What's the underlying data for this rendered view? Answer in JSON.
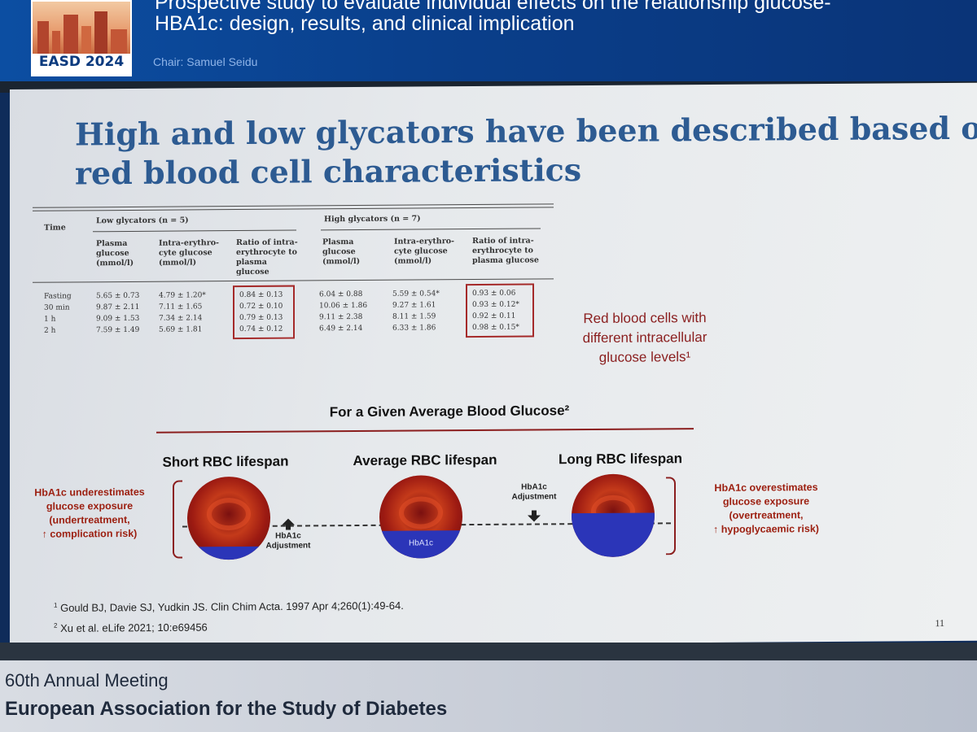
{
  "header": {
    "logo_text": "EASD 2024",
    "title_line1": "Prospective study to evaluate individual effects on the relationship glucose-",
    "title_line2": "HBA1c: design, results, and clinical implication",
    "chair": "Chair: Samuel Seidu"
  },
  "slide": {
    "title_line1": "High and low glycators have been described based on",
    "title_line2": "red blood cell characteristics",
    "table": {
      "time_header": "Time",
      "low_group": "Low glycators (n = 5)",
      "high_group": "High glycators (n = 7)",
      "col_plasma": [
        "Plasma",
        "glucose",
        "(mmol/l)"
      ],
      "col_intra": [
        "Intra-erythro-",
        "cyte glucose",
        "(mmol/l)"
      ],
      "col_ratio": [
        "Ratio of intra-",
        "erythrocyte to",
        "plasma",
        "glucose"
      ],
      "col_ratio_high": [
        "Ratio of intra-",
        "erythrocyte to",
        "plasma glucose"
      ],
      "rows": [
        {
          "time": "Fasting",
          "lp": "5.65 ± 0.73",
          "li": "4.79 ± 1.20*",
          "lr": "0.84 ± 0.13",
          "hp": "6.04 ± 0.88",
          "hi": "5.59 ± 0.54*",
          "hr": "0.93 ± 0.06"
        },
        {
          "time": "30 min",
          "lp": "9.87 ± 2.11",
          "li": "7.11 ± 1.65",
          "lr": "0.72 ± 0.10",
          "hp": "10.06 ± 1.86",
          "hi": "9.27 ± 1.61",
          "hr": "0.93 ± 0.12*"
        },
        {
          "time": "1 h",
          "lp": "9.09 ± 1.53",
          "li": "7.34 ± 2.14",
          "lr": "0.79 ± 0.13",
          "hp": "9.11 ± 2.38",
          "hi": "8.11 ± 1.59",
          "hr": "0.92 ± 0.11"
        },
        {
          "time": "2 h",
          "lp": "7.59 ± 1.49",
          "li": "5.69 ± 1.81",
          "lr": "0.74 ± 0.12",
          "hp": "6.49 ± 2.14",
          "hi": "6.33 ± 1.86",
          "hr": "0.98 ± 0.15*"
        }
      ]
    },
    "note": [
      "Red blood cells with",
      "different intracellular",
      "glucose levels¹"
    ],
    "given_heading": "For a Given Average Blood Glucose²",
    "cells": {
      "short": "Short RBC lifespan",
      "average": "Average RBC lifespan",
      "long": "Long RBC lifespan",
      "hba_label": "HbA1c"
    },
    "left_note": [
      "HbA1c underestimates",
      "glucose exposure",
      "(undertreatment,",
      "↑ complication risk)"
    ],
    "right_note": [
      "HbA1c overestimates",
      "glucose exposure",
      "(overtreatment,",
      "↑ hypoglycaemic risk)"
    ],
    "adjust_left": [
      "HbA1c",
      "Adjustment"
    ],
    "adjust_right": [
      "HbA1c",
      "Adjustment"
    ],
    "refs": [
      {
        "num": "1",
        "text": "Gould BJ, Davie SJ, Yudkin JS. Clin Chim Acta. 1997 Apr 4;260(1):49-64."
      },
      {
        "num": "2",
        "text": "Xu et al. eLife 2021; 10:e69456"
      }
    ],
    "page_number": "11"
  },
  "footer": {
    "line1": "60th Annual Meeting",
    "line2": "European Association for the Study of Diabetes"
  },
  "colors": {
    "title_blue": "#2d5b92",
    "dark_red": "#8b1e1e",
    "hba_blue": "#2b35b8"
  }
}
